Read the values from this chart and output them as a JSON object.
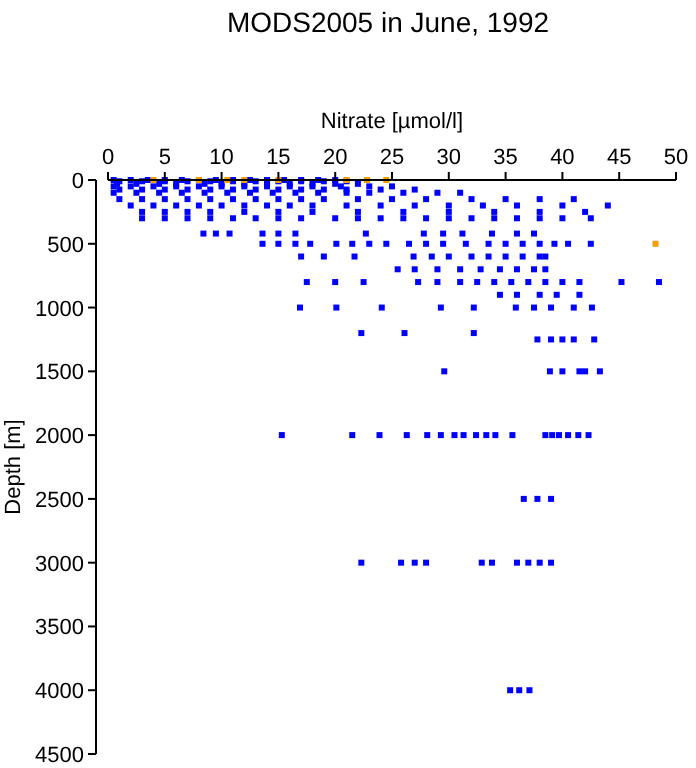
{
  "chart_data": {
    "type": "scatter",
    "title": "MODS2005 in June, 1992",
    "xlabel": "Nitrate [µmol/l]",
    "ylabel": "Depth [m]",
    "xlim": [
      0,
      50
    ],
    "xticks": [
      0,
      5,
      10,
      15,
      20,
      25,
      30,
      35,
      40,
      45,
      50
    ],
    "ylim": [
      4500,
      0
    ],
    "yticks": [
      0,
      500,
      1000,
      1500,
      2000,
      2500,
      3000,
      3500,
      4000,
      4500
    ],
    "grid": false,
    "marker": "square",
    "series": [
      {
        "color": "#0000ff",
        "x": [
          0.5,
          2,
          3.5,
          5,
          6.5,
          8,
          9.5,
          11,
          12.5,
          14,
          15.5,
          17,
          18.5,
          20,
          1,
          3,
          5,
          7,
          9,
          11,
          13,
          15,
          17,
          19,
          21,
          0.8,
          2.5,
          4.5,
          6,
          8.5,
          10,
          12,
          14,
          16,
          18,
          20,
          22,
          0.5,
          2,
          4,
          6,
          8,
          10,
          12,
          14,
          16,
          18,
          20.5,
          23,
          25,
          1,
          3,
          5,
          7,
          9,
          11,
          13,
          15,
          17,
          19,
          21,
          24,
          27,
          0.5,
          2.5,
          4.5,
          6.5,
          8.5,
          10.5,
          12.5,
          14.5,
          16.5,
          18.5,
          21,
          23,
          26,
          29,
          31,
          1,
          3,
          5,
          7,
          9,
          11,
          13,
          15,
          17,
          19,
          22,
          25,
          28,
          32,
          35,
          38,
          41,
          2,
          4,
          6,
          8,
          10,
          12,
          14,
          16,
          18,
          21,
          24,
          27,
          30,
          33,
          36,
          40,
          44,
          3,
          5,
          7,
          9,
          12,
          15,
          18,
          22,
          26,
          30,
          34,
          38,
          42,
          3,
          5,
          7,
          9,
          11,
          13,
          15,
          17,
          20,
          22,
          24,
          26,
          28,
          30,
          32,
          34,
          36,
          38,
          40,
          42.5,
          8.4,
          9.5,
          10.7,
          13.6,
          15,
          16.5,
          22.7,
          27.8,
          29.5,
          31.2,
          33.8,
          36,
          37.5,
          13.6,
          15,
          16.5,
          17.8,
          20.1,
          21.5,
          23,
          24.5,
          26.5,
          28,
          29.5,
          31.5,
          33.5,
          35,
          36.5,
          38,
          39.3,
          40.5,
          42.5,
          17,
          19,
          21.7,
          26.9,
          28.5,
          30,
          32,
          33.5,
          35,
          36.5,
          38,
          38.5,
          25.5,
          27,
          29,
          31,
          32.8,
          34.5,
          36,
          37.5,
          38.5,
          17.5,
          20,
          22.5,
          27.3,
          29,
          31,
          32.5,
          34,
          35.5,
          37,
          38.5,
          40,
          41.5,
          45.2,
          48.5,
          34.5,
          36,
          38,
          39.5,
          41.5,
          16.9,
          20.1,
          24.1,
          29.3,
          32.2,
          35.9,
          37.5,
          39,
          41,
          42.6,
          22.3,
          26.1,
          32.2,
          37.8,
          39,
          40,
          41,
          42.8,
          29.6,
          38.9,
          40,
          41.5,
          42,
          43.3,
          15.3,
          21.5,
          23.9,
          26.3,
          28.1,
          29.3,
          30.5,
          31.3,
          32.4,
          33.3,
          34.1,
          35.6,
          38.5,
          39.1,
          39.7,
          40.5,
          41.4,
          42.3,
          36.6,
          37.8,
          39,
          22.3,
          25.8,
          27,
          28,
          32.9,
          33.8,
          36,
          37,
          38,
          39,
          35.4,
          36.2,
          37.1
        ],
        "values": [
          0,
          0,
          0,
          0,
          0,
          0,
          0,
          0,
          0,
          0,
          0,
          0,
          0,
          0,
          10,
          10,
          10,
          10,
          10,
          10,
          10,
          10,
          10,
          10,
          10,
          30,
          30,
          30,
          30,
          30,
          30,
          30,
          30,
          30,
          30,
          30,
          30,
          50,
          50,
          50,
          50,
          50,
          50,
          50,
          50,
          50,
          50,
          50,
          50,
          50,
          75,
          75,
          75,
          75,
          75,
          75,
          75,
          75,
          75,
          75,
          75,
          75,
          75,
          100,
          100,
          100,
          100,
          100,
          100,
          100,
          100,
          100,
          100,
          100,
          100,
          100,
          100,
          100,
          150,
          150,
          150,
          150,
          150,
          150,
          150,
          150,
          150,
          150,
          150,
          150,
          150,
          150,
          150,
          150,
          150,
          200,
          200,
          200,
          200,
          200,
          200,
          200,
          200,
          200,
          200,
          200,
          200,
          200,
          200,
          200,
          200,
          200,
          250,
          250,
          250,
          250,
          250,
          250,
          250,
          250,
          250,
          250,
          250,
          250,
          250,
          300,
          300,
          300,
          300,
          300,
          300,
          300,
          300,
          300,
          300,
          300,
          300,
          300,
          300,
          300,
          300,
          300,
          300,
          300,
          300,
          420,
          420,
          420,
          420,
          420,
          420,
          420,
          420,
          420,
          420,
          420,
          420,
          420,
          500,
          500,
          500,
          500,
          500,
          500,
          500,
          500,
          500,
          500,
          500,
          500,
          500,
          500,
          500,
          500,
          500,
          500,
          500,
          600,
          600,
          600,
          600,
          600,
          600,
          600,
          600,
          600,
          600,
          600,
          600,
          700,
          700,
          700,
          700,
          700,
          700,
          700,
          700,
          700,
          800,
          800,
          800,
          800,
          800,
          800,
          800,
          800,
          800,
          800,
          800,
          800,
          800,
          800,
          800,
          900,
          900,
          900,
          900,
          900,
          1000,
          1000,
          1000,
          1000,
          1000,
          1000,
          1000,
          1000,
          1000,
          1000,
          1200,
          1200,
          1200,
          1250,
          1250,
          1250,
          1250,
          1250,
          1500,
          1500,
          1500,
          1500,
          1500,
          1500,
          2000,
          2000,
          2000,
          2000,
          2000,
          2000,
          2000,
          2000,
          2000,
          2000,
          2000,
          2000,
          2000,
          2000,
          2000,
          2000,
          2000,
          2000,
          2500,
          2500,
          2500,
          3000,
          3000,
          3000,
          3000,
          3000,
          3000,
          3000,
          3000,
          3000,
          3000,
          4000,
          4000,
          4000
        ]
      },
      {
        "color": "#f0a000",
        "x": [
          4,
          8,
          10.5,
          12,
          15,
          21,
          22.8,
          24.5,
          48.2
        ],
        "values": [
          0,
          0,
          0,
          0,
          0,
          0,
          0,
          0,
          500
        ]
      }
    ]
  }
}
